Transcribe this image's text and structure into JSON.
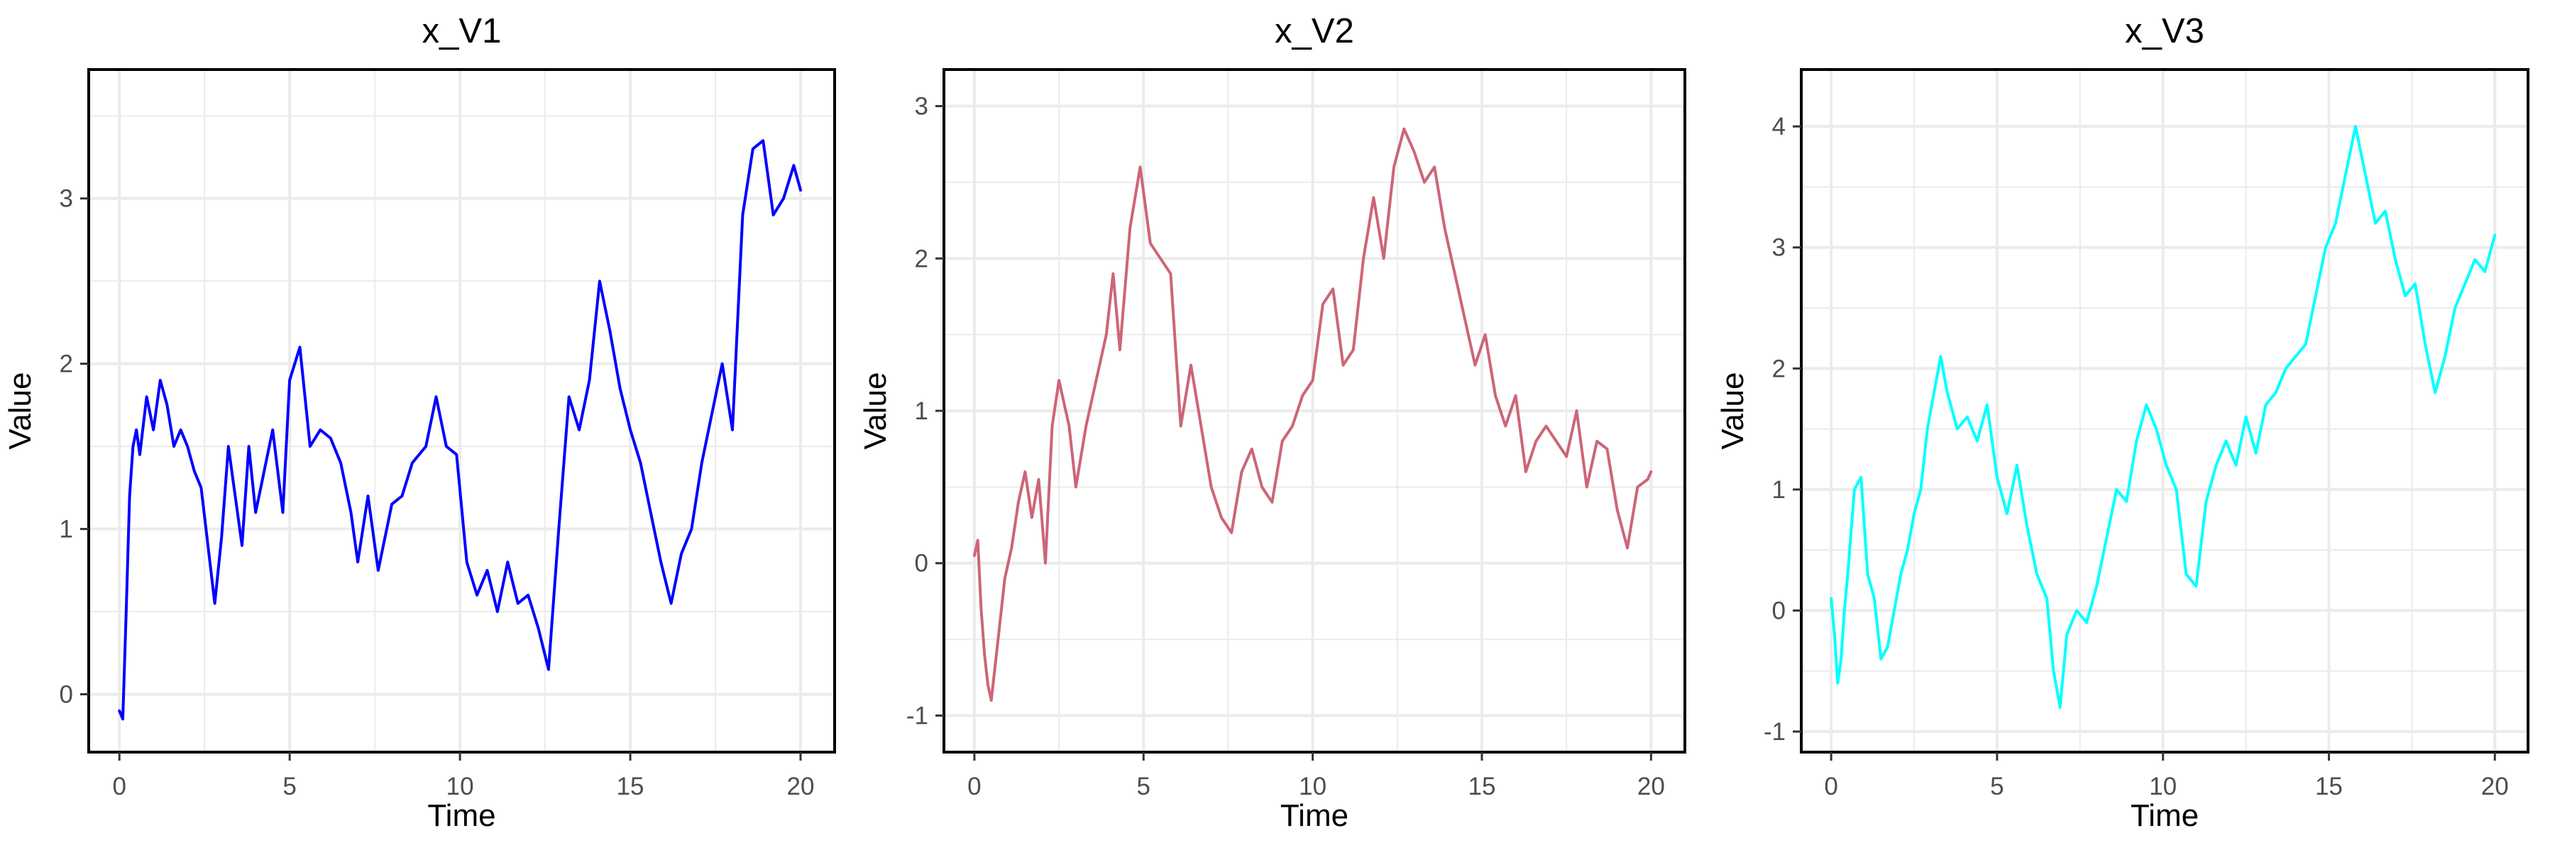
{
  "chart_data": [
    {
      "type": "line",
      "title": "x_V1",
      "xlabel": "Time",
      "ylabel": "Value",
      "xlim": [
        -0.9,
        21.0
      ],
      "ylim": [
        -0.35,
        3.78
      ],
      "x_ticks": [
        0,
        5,
        10,
        15,
        20
      ],
      "y_ticks": [
        0,
        1,
        2,
        3
      ],
      "grid": true,
      "legend": "none",
      "series": [
        {
          "color": "#0000ff",
          "x": [
            0,
            0.1,
            0.2,
            0.3,
            0.4,
            0.5,
            0.6,
            0.8,
            1.0,
            1.2,
            1.4,
            1.6,
            1.8,
            2.0,
            2.2,
            2.4,
            2.6,
            2.8,
            3.0,
            3.2,
            3.4,
            3.6,
            3.8,
            4.0,
            4.2,
            4.5,
            4.8,
            5.0,
            5.3,
            5.6,
            5.9,
            6.2,
            6.5,
            6.8,
            7.0,
            7.3,
            7.6,
            8.0,
            8.3,
            8.6,
            9.0,
            9.3,
            9.6,
            9.9,
            10.2,
            10.5,
            10.8,
            11.1,
            11.4,
            11.7,
            12.0,
            12.3,
            12.6,
            12.9,
            13.2,
            13.5,
            13.8,
            14.1,
            14.4,
            14.7,
            15.0,
            15.3,
            15.6,
            15.9,
            16.2,
            16.5,
            16.8,
            17.1,
            17.4,
            17.7,
            18.0,
            18.3,
            18.6,
            18.9,
            19.2,
            19.5,
            19.8,
            20.0
          ],
          "y": [
            -0.1,
            -0.15,
            0.5,
            1.2,
            1.5,
            1.6,
            1.45,
            1.8,
            1.6,
            1.9,
            1.75,
            1.5,
            1.6,
            1.5,
            1.35,
            1.25,
            0.9,
            0.55,
            0.95,
            1.5,
            1.2,
            0.9,
            1.5,
            1.1,
            1.3,
            1.6,
            1.1,
            1.9,
            2.1,
            1.5,
            1.6,
            1.55,
            1.4,
            1.1,
            0.8,
            1.2,
            0.75,
            1.15,
            1.2,
            1.4,
            1.5,
            1.8,
            1.5,
            1.45,
            0.8,
            0.6,
            0.75,
            0.5,
            0.8,
            0.55,
            0.6,
            0.4,
            0.15,
            1.0,
            1.8,
            1.6,
            1.9,
            2.5,
            2.2,
            1.85,
            1.6,
            1.4,
            1.1,
            0.8,
            0.55,
            0.85,
            1.0,
            1.4,
            1.7,
            2.0,
            1.6,
            2.9,
            3.3,
            3.35,
            2.9,
            3.0,
            3.2,
            3.05
          ]
        }
      ]
    },
    {
      "type": "line",
      "title": "x_V2",
      "xlabel": "Time",
      "ylabel": "Value",
      "xlim": [
        -0.9,
        21.0
      ],
      "ylim": [
        -1.24,
        3.24
      ],
      "x_ticks": [
        0,
        5,
        10,
        15,
        20
      ],
      "y_ticks": [
        -1,
        0,
        1,
        2,
        3
      ],
      "grid": true,
      "legend": "none",
      "series": [
        {
          "color": "#cc6677",
          "x": [
            0,
            0.1,
            0.2,
            0.3,
            0.4,
            0.5,
            0.7,
            0.9,
            1.1,
            1.3,
            1.5,
            1.7,
            1.9,
            2.1,
            2.3,
            2.5,
            2.8,
            3.0,
            3.3,
            3.6,
            3.9,
            4.1,
            4.3,
            4.6,
            4.9,
            5.2,
            5.5,
            5.8,
            6.1,
            6.4,
            6.7,
            7.0,
            7.3,
            7.6,
            7.9,
            8.2,
            8.5,
            8.8,
            9.1,
            9.4,
            9.7,
            10.0,
            10.3,
            10.6,
            10.9,
            11.2,
            11.5,
            11.8,
            12.1,
            12.4,
            12.7,
            13.0,
            13.3,
            13.6,
            13.9,
            14.2,
            14.5,
            14.8,
            15.1,
            15.4,
            15.7,
            16.0,
            16.3,
            16.6,
            16.9,
            17.2,
            17.5,
            17.8,
            18.1,
            18.4,
            18.7,
            19.0,
            19.3,
            19.6,
            19.9,
            20.0
          ],
          "y": [
            0.05,
            0.15,
            -0.3,
            -0.6,
            -0.8,
            -0.9,
            -0.5,
            -0.1,
            0.1,
            0.4,
            0.6,
            0.3,
            0.55,
            0.0,
            0.9,
            1.2,
            0.9,
            0.5,
            0.9,
            1.2,
            1.5,
            1.9,
            1.4,
            2.2,
            2.6,
            2.1,
            2.0,
            1.9,
            0.9,
            1.3,
            0.9,
            0.5,
            0.3,
            0.2,
            0.6,
            0.75,
            0.5,
            0.4,
            0.8,
            0.9,
            1.1,
            1.2,
            1.7,
            1.8,
            1.3,
            1.4,
            2.0,
            2.4,
            2.0,
            2.6,
            2.85,
            2.7,
            2.5,
            2.6,
            2.2,
            1.9,
            1.6,
            1.3,
            1.5,
            1.1,
            0.9,
            1.1,
            0.6,
            0.8,
            0.9,
            0.8,
            0.7,
            1.0,
            0.5,
            0.8,
            0.75,
            0.35,
            0.1,
            0.5,
            0.55,
            0.6
          ]
        }
      ]
    },
    {
      "type": "line",
      "title": "x_V3",
      "xlabel": "Time",
      "ylabel": "Value",
      "xlim": [
        -0.9,
        21.0
      ],
      "ylim": [
        -1.17,
        4.47
      ],
      "x_ticks": [
        0,
        5,
        10,
        15,
        20
      ],
      "y_ticks": [
        -1,
        0,
        1,
        2,
        3,
        4
      ],
      "grid": true,
      "legend": "none",
      "series": [
        {
          "color": "#00ffff",
          "x": [
            0,
            0.1,
            0.2,
            0.3,
            0.4,
            0.5,
            0.7,
            0.9,
            1.1,
            1.3,
            1.5,
            1.7,
            1.9,
            2.1,
            2.3,
            2.5,
            2.7,
            2.9,
            3.1,
            3.3,
            3.5,
            3.8,
            4.1,
            4.4,
            4.7,
            5.0,
            5.3,
            5.6,
            5.9,
            6.2,
            6.5,
            6.7,
            6.9,
            7.1,
            7.4,
            7.7,
            8.0,
            8.3,
            8.6,
            8.9,
            9.2,
            9.5,
            9.8,
            10.1,
            10.4,
            10.7,
            11.0,
            11.3,
            11.6,
            11.9,
            12.2,
            12.5,
            12.8,
            13.1,
            13.4,
            13.7,
            14.0,
            14.3,
            14.6,
            14.9,
            15.2,
            15.5,
            15.8,
            16.1,
            16.4,
            16.7,
            17.0,
            17.3,
            17.6,
            17.9,
            18.2,
            18.5,
            18.8,
            19.1,
            19.4,
            19.7,
            20.0
          ],
          "y": [
            0.1,
            -0.2,
            -0.6,
            -0.4,
            0.0,
            0.3,
            1.0,
            1.1,
            0.3,
            0.1,
            -0.4,
            -0.3,
            0.0,
            0.3,
            0.5,
            0.8,
            1.0,
            1.5,
            1.8,
            2.1,
            1.8,
            1.5,
            1.6,
            1.4,
            1.7,
            1.1,
            0.8,
            1.2,
            0.7,
            0.3,
            0.1,
            -0.5,
            -0.8,
            -0.2,
            0.0,
            -0.1,
            0.2,
            0.6,
            1.0,
            0.9,
            1.4,
            1.7,
            1.5,
            1.2,
            1.0,
            0.3,
            0.2,
            0.9,
            1.2,
            1.4,
            1.2,
            1.6,
            1.3,
            1.7,
            1.8,
            2.0,
            2.1,
            2.2,
            2.6,
            3.0,
            3.2,
            3.6,
            4.0,
            3.6,
            3.2,
            3.3,
            2.9,
            2.6,
            2.7,
            2.2,
            1.8,
            2.1,
            2.5,
            2.7,
            2.9,
            2.8,
            3.1
          ]
        }
      ]
    }
  ]
}
